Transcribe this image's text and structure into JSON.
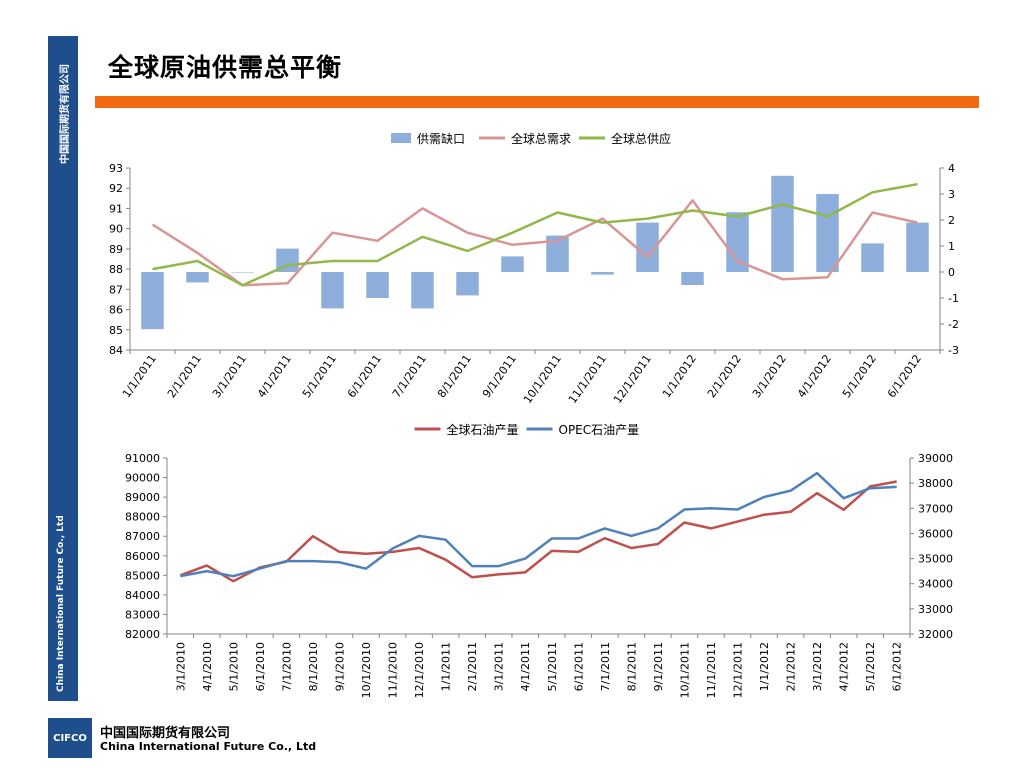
{
  "page": {
    "title": "全球原油供需总平衡",
    "sidebar_cn": "中国国际期货有限公司",
    "sidebar_en": "China International Future Co., Ltd",
    "footer_logo": "CIFCO",
    "footer_cn": "中国国际期货有限公司",
    "footer_en": "China International Future Co., Ltd",
    "colors": {
      "sidebar": "#1f4e8c",
      "accent_bar": "#f26a0f"
    }
  },
  "chart_data": [
    {
      "type": "bar-line combo",
      "categories": [
        "1/1/2011",
        "2/1/2011",
        "3/1/2011",
        "4/1/2011",
        "5/1/2011",
        "6/1/2011",
        "7/1/2011",
        "8/1/2011",
        "9/1/2011",
        "10/1/2011",
        "11/1/2011",
        "12/1/2011",
        "1/1/2012",
        "2/1/2012",
        "3/1/2012",
        "4/1/2012",
        "5/1/2012",
        "6/1/2012"
      ],
      "left_axis": {
        "min": 84,
        "max": 93,
        "ticks": [
          84,
          85,
          86,
          87,
          88,
          89,
          90,
          91,
          92,
          93
        ]
      },
      "right_axis": {
        "min": -3,
        "max": 4,
        "ticks": [
          -3,
          -2,
          -1,
          0,
          1,
          2,
          3,
          4
        ]
      },
      "legend_position": "top",
      "series": [
        {
          "name": "供需缺口",
          "kind": "bar",
          "axis": "right",
          "color": "#8eaedb",
          "values": [
            -2.2,
            -0.4,
            0,
            0.9,
            -1.4,
            -1.0,
            -1.4,
            -0.9,
            0.6,
            1.4,
            -0.1,
            1.9,
            -0.5,
            2.3,
            3.7,
            3.0,
            1.1,
            1.9
          ]
        },
        {
          "name": "全球总需求",
          "kind": "line",
          "axis": "left",
          "color": "#d99594",
          "values": [
            90.2,
            88.8,
            87.2,
            87.3,
            89.8,
            89.4,
            91.0,
            89.8,
            89.2,
            89.4,
            90.5,
            88.6,
            91.4,
            88.4,
            87.5,
            87.6,
            90.8,
            90.3
          ]
        },
        {
          "name": "全球总供应",
          "kind": "line",
          "axis": "left",
          "color": "#92b84a",
          "values": [
            88.0,
            88.4,
            87.2,
            88.2,
            88.4,
            88.4,
            89.6,
            88.9,
            89.8,
            90.8,
            90.3,
            90.5,
            90.9,
            90.6,
            91.2,
            90.6,
            91.8,
            92.2
          ]
        }
      ]
    },
    {
      "type": "line",
      "categories": [
        "3/1/2010",
        "4/1/2010",
        "5/1/2010",
        "6/1/2010",
        "7/1/2010",
        "8/1/2010",
        "9/1/2010",
        "10/1/2010",
        "11/1/2010",
        "12/1/2010",
        "1/1/2011",
        "2/1/2011",
        "3/1/2011",
        "4/1/2011",
        "5/1/2011",
        "6/1/2011",
        "7/1/2011",
        "8/1/2011",
        "9/1/2011",
        "10/1/2011",
        "11/1/2011",
        "12/1/2011",
        "1/1/2012",
        "2/1/2012",
        "3/1/2012",
        "4/1/2012",
        "5/1/2012",
        "6/1/2012"
      ],
      "left_axis": {
        "min": 82000,
        "max": 91000,
        "ticks": [
          82000,
          83000,
          84000,
          85000,
          86000,
          87000,
          88000,
          89000,
          90000,
          91000
        ]
      },
      "right_axis": {
        "min": 32000,
        "max": 39000,
        "ticks": [
          32000,
          33000,
          34000,
          35000,
          36000,
          37000,
          38000,
          39000
        ]
      },
      "legend_position": "top",
      "series": [
        {
          "name": "全球石油产量",
          "axis": "left",
          "color": "#c0504d",
          "values": [
            85000,
            85500,
            84700,
            85400,
            85700,
            87000,
            86200,
            86100,
            86200,
            86400,
            85800,
            84900,
            85050,
            85150,
            86250,
            86200,
            86900,
            86400,
            86600,
            87700,
            87400,
            87750,
            88100,
            88250,
            89200,
            88350,
            89550,
            89800
          ]
        },
        {
          "name": "OPEC石油产量",
          "axis": "right",
          "color": "#4f81bd",
          "values": [
            34300,
            34500,
            34300,
            34600,
            34900,
            34900,
            34850,
            34600,
            35400,
            35900,
            35750,
            34700,
            34700,
            35000,
            35800,
            35800,
            36200,
            35900,
            36200,
            36950,
            37000,
            36950,
            37450,
            37700,
            38400,
            37400,
            37800,
            37850
          ]
        }
      ]
    }
  ]
}
